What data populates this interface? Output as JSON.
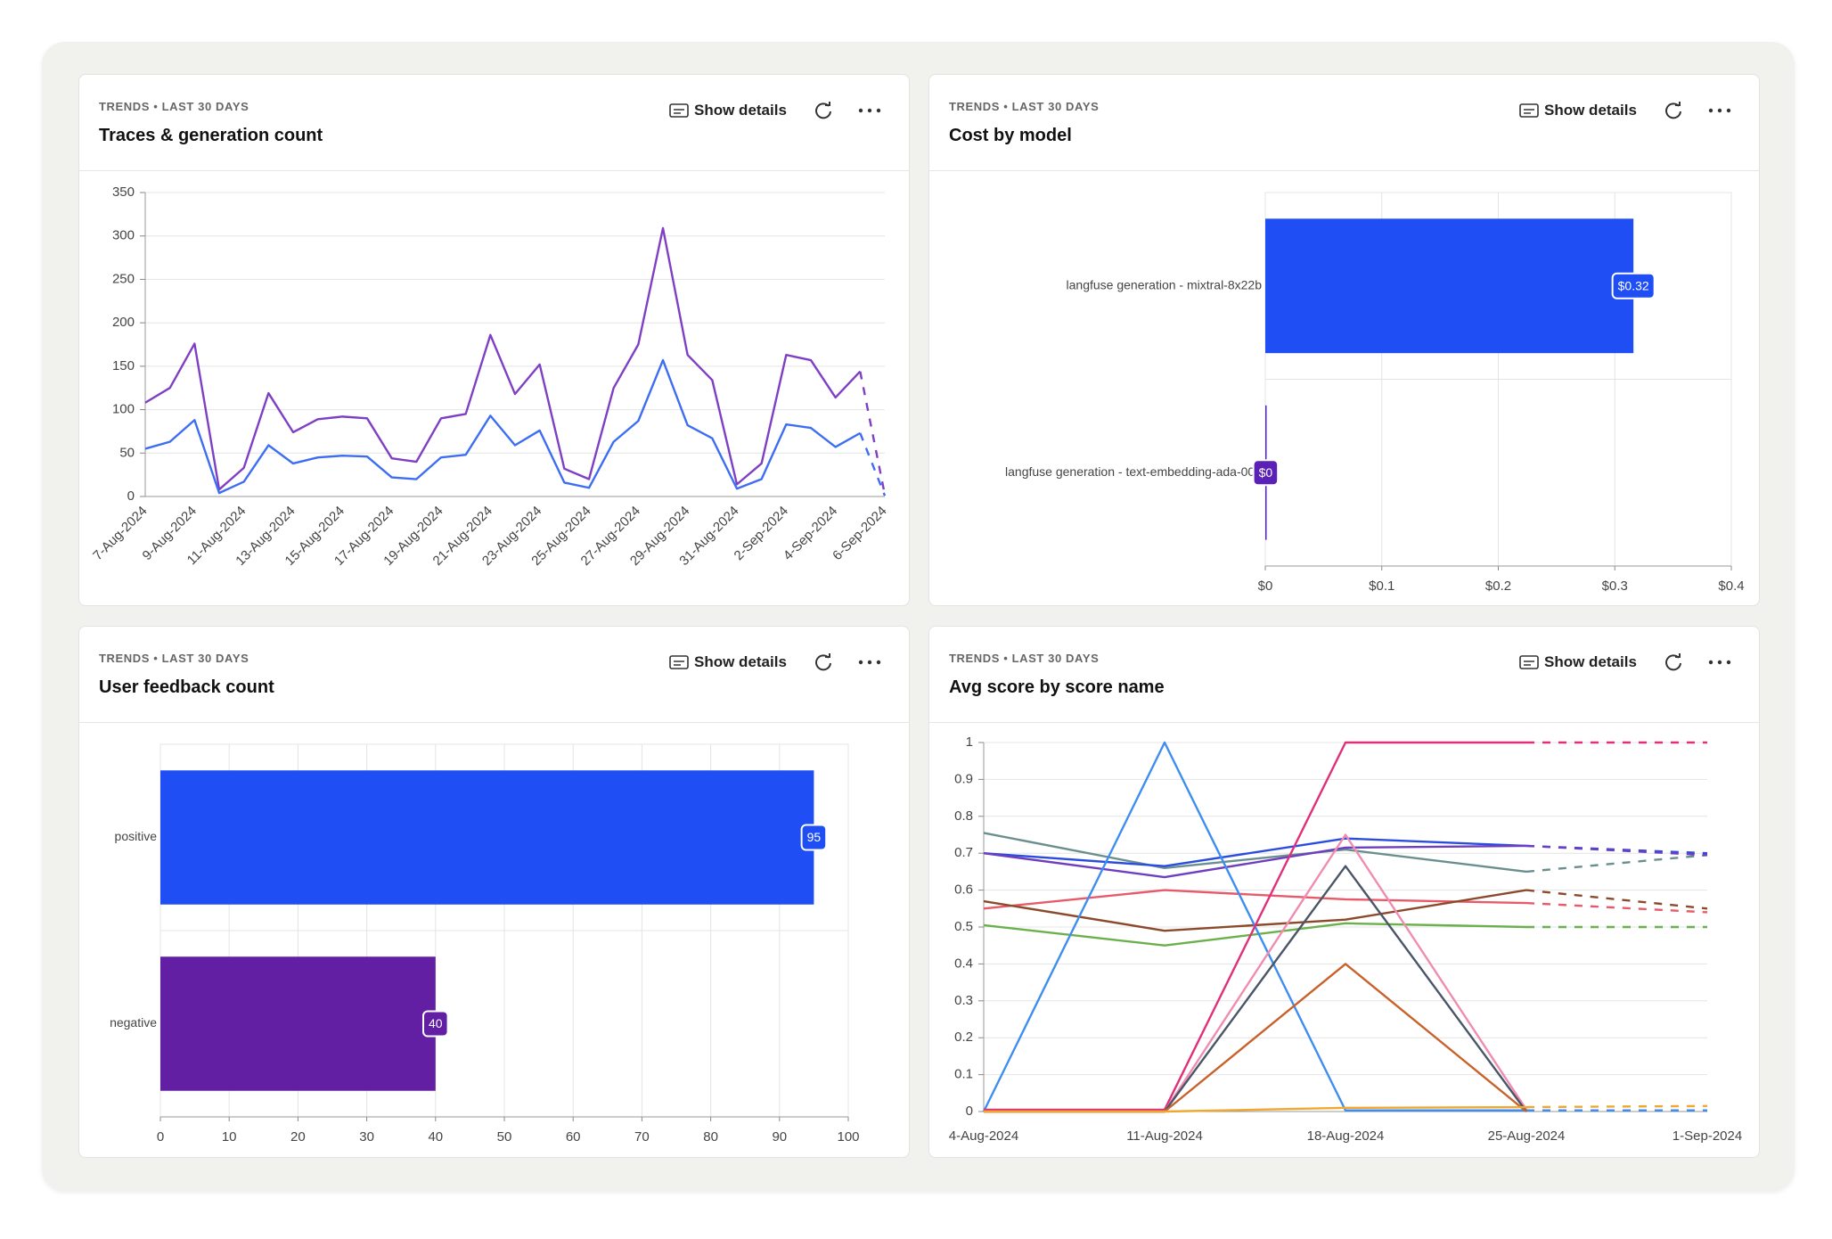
{
  "chart_data": [
    {
      "type": "line",
      "eyebrow": "TRENDS • LAST 30 DAYS",
      "action": "Show details",
      "title": "Traces & generation count",
      "categories": [
        "7-Aug-2024",
        null,
        "9-Aug-2024",
        null,
        "11-Aug-2024",
        null,
        "13-Aug-2024",
        null,
        "15-Aug-2024",
        null,
        "17-Aug-2024",
        null,
        "19-Aug-2024",
        null,
        "21-Aug-2024",
        null,
        "23-Aug-2024",
        null,
        "25-Aug-2024",
        null,
        "27-Aug-2024",
        null,
        "29-Aug-2024",
        null,
        "31-Aug-2024",
        null,
        "2-Sep-2024",
        null,
        "4-Sep-2024",
        null,
        "6-Sep-2024"
      ],
      "series": [
        {
          "color": "#7e3fc4",
          "values": [
            108,
            125,
            176,
            8,
            33,
            119,
            74,
            89,
            92,
            90,
            44,
            40,
            90,
            95,
            186,
            118,
            152,
            32,
            20,
            125,
            175,
            309,
            163,
            134,
            14,
            38,
            163,
            157,
            114,
            144,
            2
          ]
        },
        {
          "color": "#3d6df2",
          "values": [
            55,
            63,
            88,
            4,
            17,
            59,
            38,
            45,
            47,
            46,
            22,
            20,
            45,
            48,
            93,
            59,
            76,
            16,
            10,
            63,
            87,
            157,
            82,
            67,
            9,
            20,
            83,
            79,
            57,
            73,
            1
          ]
        }
      ],
      "ylim": [
        0,
        350
      ],
      "yticks": [
        0,
        50,
        100,
        150,
        200,
        250,
        300,
        350
      ],
      "grid": true,
      "dashed_last": true
    },
    {
      "type": "bar",
      "orientation": "horizontal",
      "eyebrow": "TRENDS • LAST 30 DAYS",
      "action": "Show details",
      "title": "Cost by model",
      "categories": [
        "langfuse generation - mixtral-8x22b",
        "langfuse generation - text-embedding-ada-002"
      ],
      "values": [
        0.316,
        0.0003
      ],
      "value_labels": [
        "$0.32",
        "$0"
      ],
      "colors": [
        "#1f4ef5",
        "#5b21b6"
      ],
      "xlim": [
        0,
        0.4
      ],
      "xticks": [
        {
          "value": 0,
          "label": "$0"
        },
        {
          "value": 0.1,
          "label": "$0.1"
        },
        {
          "value": 0.2,
          "label": "$0.2"
        },
        {
          "value": 0.3,
          "label": "$0.3"
        },
        {
          "value": 0.4,
          "label": "$0.4"
        }
      ],
      "grid": true
    },
    {
      "type": "bar",
      "orientation": "horizontal",
      "eyebrow": "TRENDS • LAST 30 DAYS",
      "action": "Show details",
      "title": "User feedback count",
      "categories": [
        "positive",
        "negative"
      ],
      "values": [
        95,
        40
      ],
      "colors": [
        "#1f4ef5",
        "#621fa3"
      ],
      "xlim": [
        0,
        100
      ],
      "xticks": [
        0,
        10,
        20,
        30,
        40,
        50,
        60,
        70,
        80,
        90,
        100
      ],
      "grid": true
    },
    {
      "type": "line",
      "eyebrow": "TRENDS • LAST 30 DAYS",
      "action": "Show details",
      "title": "Avg score by score name",
      "categories": [
        "4-Aug-2024",
        "11-Aug-2024",
        "18-Aug-2024",
        "25-Aug-2024",
        "1-Sep-2024"
      ],
      "series": [
        {
          "color": "#6b8e8e",
          "values": [
            0.755,
            0.66,
            0.71,
            0.65,
            0.695
          ]
        },
        {
          "color": "#2a4de0",
          "values": [
            0.7,
            0.665,
            0.74,
            0.72,
            0.7
          ]
        },
        {
          "color": "#6d3fc0",
          "values": [
            0.7,
            0.635,
            0.715,
            0.72,
            0.695
          ]
        },
        {
          "color": "#e85a6a",
          "values": [
            0.55,
            0.6,
            0.575,
            0.565,
            0.54
          ]
        },
        {
          "color": "#8b4a2b",
          "values": [
            0.57,
            0.49,
            0.52,
            0.6,
            0.55
          ]
        },
        {
          "color": "#6ab04c",
          "values": [
            0.505,
            0.45,
            0.51,
            0.5,
            0.5
          ]
        },
        {
          "color": "#3d8ef0",
          "values": [
            0,
            1,
            0.003,
            0.003,
            0.003
          ]
        },
        {
          "color": "#e0307a",
          "values": [
            0.005,
            0.005,
            1,
            1,
            1
          ]
        },
        {
          "color": "#f08cb0",
          "values": [
            0,
            0,
            0.75,
            0.005,
            null
          ]
        },
        {
          "color": "#4a5568",
          "values": [
            0,
            0,
            0.665,
            0,
            null
          ]
        },
        {
          "color": "#c8612a",
          "values": [
            0,
            0,
            0.4,
            0,
            null
          ]
        },
        {
          "color": "#f0a830",
          "values": [
            0,
            0,
            0.01,
            0.012,
            0.015
          ]
        }
      ],
      "ylim": [
        0,
        1
      ],
      "yticks": [
        0,
        0.1,
        0.2,
        0.3,
        0.4,
        0.5,
        0.6,
        0.7,
        0.8,
        0.9,
        1
      ],
      "grid": true,
      "dashed_last": true
    }
  ]
}
